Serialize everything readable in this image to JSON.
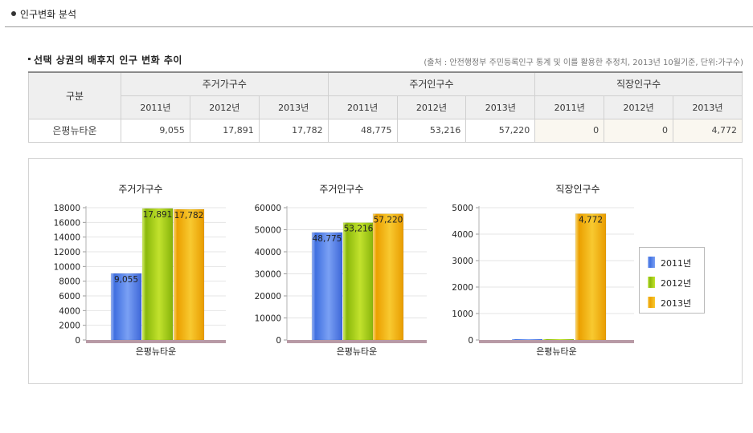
{
  "section": {
    "title": "인구변화 분석"
  },
  "table": {
    "title": "선택 상권의 배후지 인구 변화 추이",
    "source": "(출처 : 안전행정부 주민등록인구 통계 및 이를 활용한 추정치, 2013년 10월기준, 단위:가구수)",
    "corner_label": "구분",
    "groups": [
      "주거가구수",
      "주거인구수",
      "직장인구수"
    ],
    "years": [
      "2011년",
      "2012년",
      "2013년"
    ],
    "rows": [
      {
        "name": "은평뉴타운",
        "values": [
          "9,055",
          "17,891",
          "17,782",
          "48,775",
          "53,216",
          "57,220",
          "0",
          "0",
          "4,772"
        ]
      }
    ]
  },
  "colors": {
    "y2011": "#4f7ee8",
    "y2012": "#99c910",
    "y2013": "#f0ae00",
    "baseline": "#b89aa6"
  },
  "chart_data": [
    {
      "type": "bar",
      "title": "주거가구수",
      "categories": [
        "은평뉴타운"
      ],
      "ylim": [
        0,
        18000
      ],
      "yticks": [
        "0",
        "2000",
        "4000",
        "6000",
        "8000",
        "10000",
        "12000",
        "14000",
        "16000",
        "18000"
      ],
      "series": [
        {
          "name": "2011년",
          "values": [
            9055
          ],
          "label": "9,055"
        },
        {
          "name": "2012년",
          "values": [
            17891
          ],
          "label": "17,891"
        },
        {
          "name": "2013년",
          "values": [
            17782
          ],
          "label": "17,782"
        }
      ]
    },
    {
      "type": "bar",
      "title": "주거인구수",
      "categories": [
        "은평뉴타운"
      ],
      "ylim": [
        0,
        60000
      ],
      "yticks": [
        "0",
        "10000",
        "20000",
        "30000",
        "40000",
        "50000",
        "60000"
      ],
      "series": [
        {
          "name": "2011년",
          "values": [
            48775
          ],
          "label": "48,775"
        },
        {
          "name": "2012년",
          "values": [
            53216
          ],
          "label": "53,216"
        },
        {
          "name": "2013년",
          "values": [
            57220
          ],
          "label": "57,220"
        }
      ]
    },
    {
      "type": "bar",
      "title": "직장인구수",
      "categories": [
        "은평뉴타운"
      ],
      "ylim": [
        0,
        5000
      ],
      "yticks": [
        "0",
        "1000",
        "2000",
        "3000",
        "4000",
        "5000"
      ],
      "series": [
        {
          "name": "2011년",
          "values": [
            0
          ],
          "label": ""
        },
        {
          "name": "2012년",
          "values": [
            0
          ],
          "label": ""
        },
        {
          "name": "2013년",
          "values": [
            4772
          ],
          "label": "4,772"
        }
      ]
    }
  ],
  "legend": {
    "items": [
      "2011년",
      "2012년",
      "2013년"
    ]
  }
}
